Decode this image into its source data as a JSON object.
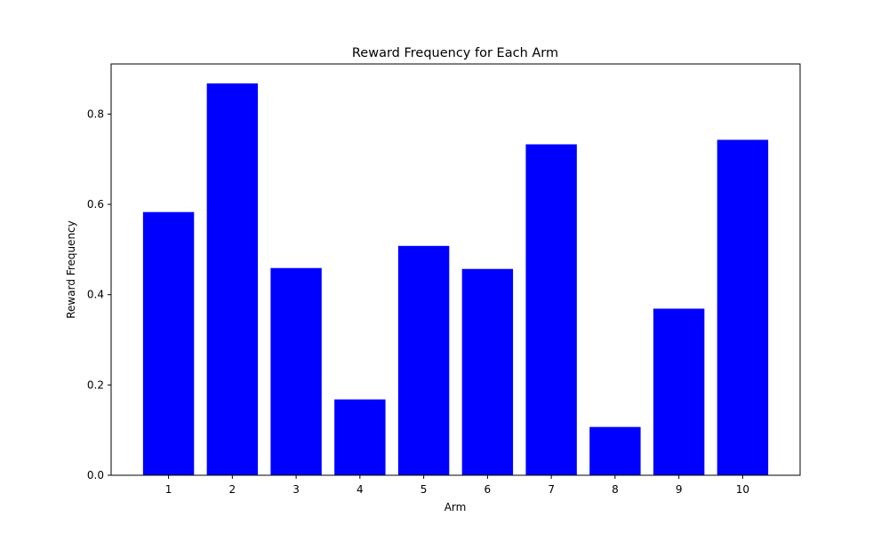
{
  "chart_data": {
    "type": "bar",
    "title": "Reward Frequency for Each Arm",
    "xlabel": "Arm",
    "ylabel": "Reward Frequency",
    "categories": [
      "1",
      "2",
      "3",
      "4",
      "5",
      "6",
      "7",
      "8",
      "9",
      "10"
    ],
    "values": [
      0.583,
      0.868,
      0.459,
      0.168,
      0.508,
      0.457,
      0.733,
      0.107,
      0.369,
      0.743
    ],
    "ylim": [
      0,
      0.911
    ],
    "yticks": [
      "0.0",
      "0.2",
      "0.4",
      "0.6",
      "0.8"
    ],
    "grid": false,
    "bar_color": "#0000ff"
  }
}
